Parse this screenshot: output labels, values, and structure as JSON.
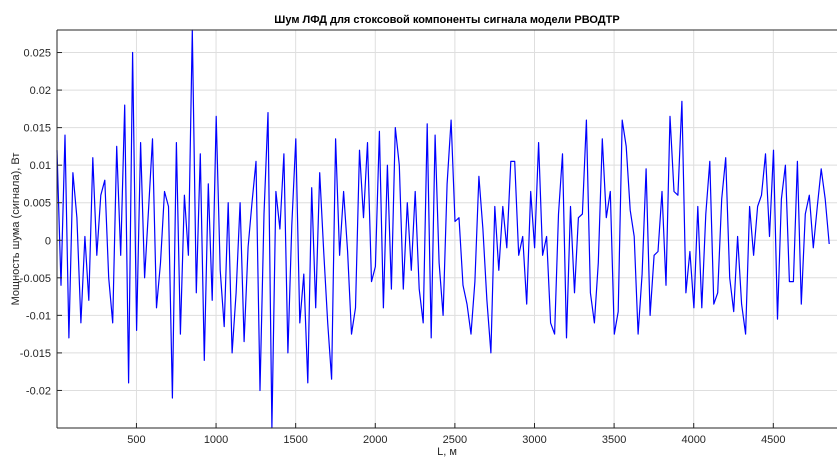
{
  "chart_data": {
    "type": "line",
    "title": "Шум ЛФД для стоксовой компоненты сигнала модели РВОДТР",
    "xlabel": "L, м",
    "ylabel": "Мощность шума (сигнала), Вт",
    "xlim": [
      1,
      4900
    ],
    "ylim": [
      -0.025,
      0.028
    ],
    "grid": true,
    "line_color": "#0000ff",
    "x_ticks": [
      500,
      1000,
      1500,
      2000,
      2500,
      3000,
      3500,
      4000,
      4500
    ],
    "x_tick_labels": [
      "500",
      "1000",
      "1500",
      "2000",
      "2500",
      "3000",
      "3500",
      "4000",
      "4500"
    ],
    "y_ticks": [
      -0.02,
      -0.015,
      -0.01,
      -0.005,
      0,
      0.005,
      0.01,
      0.015,
      0.02,
      0.025
    ],
    "y_tick_labels": [
      "-0.02",
      "-0.015",
      "-0.01",
      "-0.005",
      "0",
      "0.005",
      "0.01",
      "0.015",
      "0.02",
      "0.025"
    ],
    "series": [
      {
        "x_start": 1,
        "x_step": 25,
        "values": [
          0.012,
          -0.006,
          0.014,
          -0.013,
          0.009,
          0.003,
          -0.011,
          0.0005,
          -0.008,
          0.011,
          -0.002,
          0.006,
          0.008,
          -0.005,
          -0.011,
          0.0125,
          -0.002,
          0.018,
          -0.019,
          0.025,
          -0.012,
          0.013,
          -0.005,
          0.004,
          0.0135,
          -0.009,
          -0.003,
          0.0065,
          0.0045,
          -0.021,
          0.013,
          -0.0125,
          0.006,
          -0.002,
          0.028,
          -0.007,
          0.0115,
          -0.016,
          0.0075,
          -0.008,
          0.0165,
          -0.004,
          -0.0115,
          0.005,
          -0.015,
          -0.007,
          0.005,
          -0.0135,
          -0.0009,
          0.005,
          0.0105,
          -0.02,
          0.0035,
          0.017,
          -0.025,
          0.0065,
          0.0015,
          0.0115,
          -0.015,
          0.002,
          0.0135,
          -0.011,
          -0.0045,
          -0.019,
          0.007,
          -0.009,
          0.009,
          -0.0015,
          -0.011,
          -0.0185,
          0.0135,
          -0.002,
          0.0065,
          -0.0015,
          -0.0125,
          -0.009,
          0.012,
          0.003,
          0.013,
          -0.0055,
          -0.0035,
          0.0145,
          -0.009,
          0.01,
          -0.0065,
          0.015,
          0.01,
          -0.0065,
          0.005,
          -0.004,
          0.0065,
          -0.0065,
          -0.011,
          0.0155,
          -0.013,
          0.014,
          -0.003,
          -0.01,
          0.0075,
          0.016,
          0.0025,
          0.003,
          -0.006,
          -0.0085,
          -0.0125,
          -0.0055,
          0.0085,
          0.0015,
          -0.008,
          -0.015,
          0.0045,
          -0.004,
          0.0045,
          -0.001,
          0.0105,
          0.0105,
          -0.002,
          0.0005,
          -0.0085,
          0.0065,
          -0.001,
          0.013,
          -0.002,
          0.0005,
          -0.011,
          -0.0125,
          0.0035,
          0.0115,
          -0.013,
          0.0045,
          -0.007,
          0.003,
          0.0035,
          0.016,
          -0.007,
          -0.011,
          -0.003,
          0.0135,
          0.003,
          0.0065,
          -0.0125,
          -0.0095,
          0.016,
          0.0125,
          0.004,
          0.0005,
          -0.0125,
          -0.0045,
          0.0095,
          -0.01,
          -0.002,
          -0.0015,
          0.0065,
          -0.006,
          0.0165,
          0.0065,
          0.006,
          0.0185,
          -0.007,
          -0.0015,
          -0.009,
          0.0045,
          -0.009,
          0.0035,
          0.0105,
          -0.0085,
          -0.007,
          0.0055,
          0.011,
          -0.005,
          -0.0095,
          0.0005,
          -0.0085,
          -0.0125,
          0.0045,
          -0.002,
          0.0045,
          0.006,
          0.0115,
          0.0005,
          0.012,
          -0.0105,
          0.0055,
          0.01,
          -0.0055,
          -0.0055,
          0.0105,
          -0.0085,
          0.0035,
          0.006,
          -0.001,
          0.0045,
          0.0095,
          0.0055,
          -0.0005
        ]
      }
    ]
  }
}
